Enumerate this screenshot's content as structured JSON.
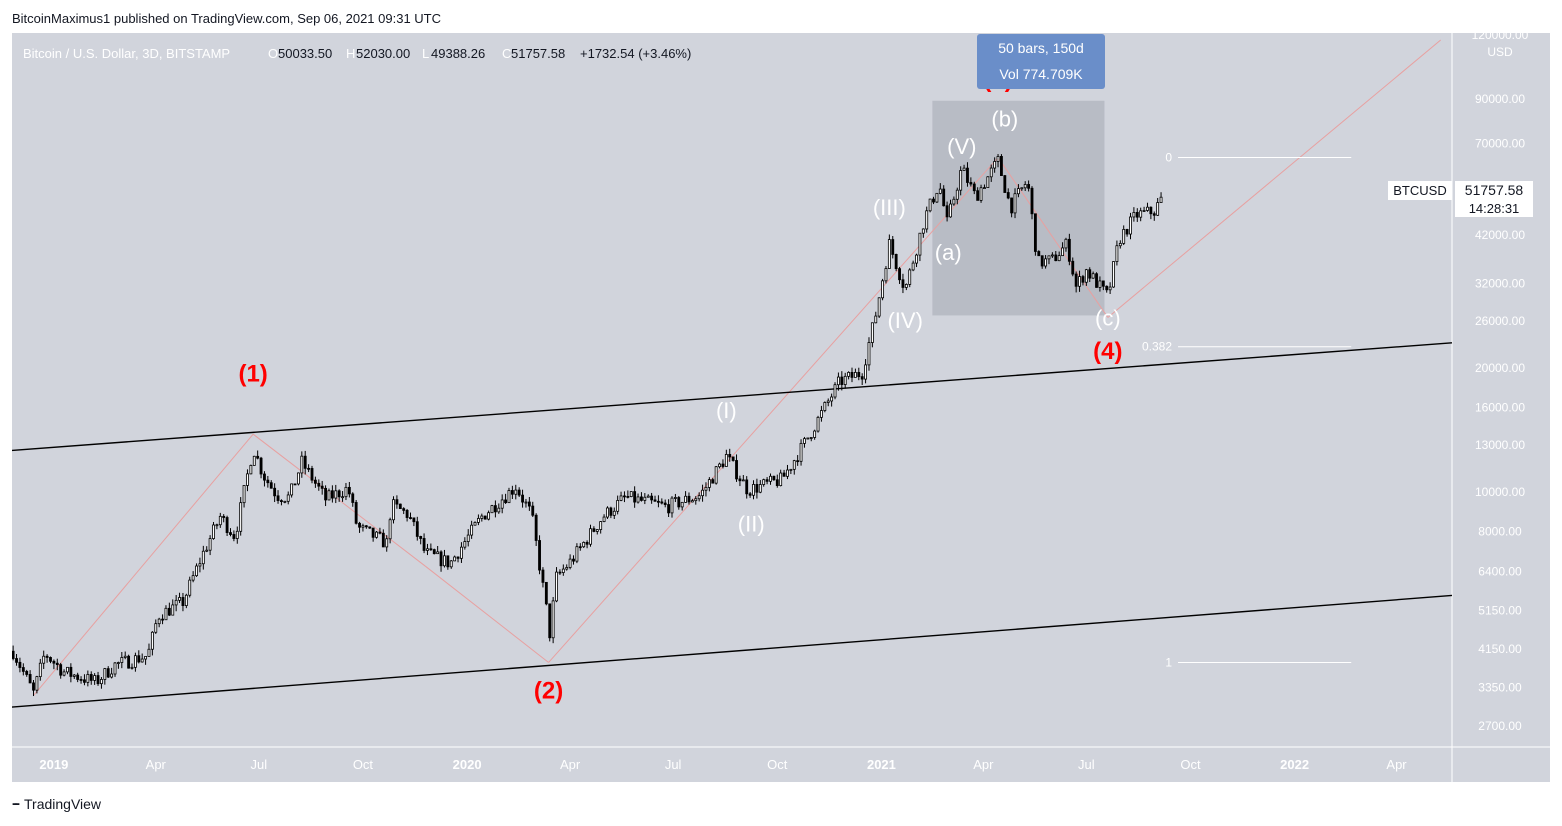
{
  "caption": "BitcoinMaximus1 published on TradingView.com, Sep 06, 2021 09:31 UTC",
  "footer": {
    "logo_text": "TradingView"
  },
  "legend": {
    "symbol": "Bitcoin / U.S. Dollar, 3D, BITSTAMP",
    "o_label": "O",
    "o_value": "50033.50",
    "h_label": "H",
    "h_value": "52030.00",
    "l_label": "L",
    "l_value": "49388.26",
    "c_label": "C",
    "c_value": "51757.58",
    "change": "+1732.54 (+3.46%)"
  },
  "measure": {
    "line1": "50 bars, 150d",
    "line2": "Vol 774.709K"
  },
  "price_tag": {
    "symbol": "BTCUSD",
    "price": "51757.58",
    "countdown": "14:28:31"
  },
  "fib_labels": {
    "zero": "0",
    "level_382": "0.382",
    "one": "1"
  },
  "colors": {
    "background": "#d1d4dc",
    "candle": "#000000",
    "wave_major": "#ff0000",
    "wave_minor": "#ffffff",
    "zigzag": "#e8a0a0",
    "measure_box": "#6a8ec9"
  },
  "chart_data": {
    "type": "candlestick",
    "title": "Bitcoin / U.S. Dollar, 3D, BITSTAMP",
    "currency": "USD",
    "y_scale": "log",
    "ylim": [
      2400,
      130000
    ],
    "xlim": [
      "2018-11-25",
      "2022-05-20"
    ],
    "y_ticks": [
      "120000.00",
      "90000.00",
      "70000.00",
      "54000.00",
      "42000.00",
      "32000.00",
      "26000.00",
      "20000.00",
      "16000.00",
      "13000.00",
      "10000.00",
      "8000.00",
      "6400.00",
      "5150.00",
      "4150.00",
      "3350.00",
      "2700.00"
    ],
    "x_ticks": [
      {
        "label": "2019",
        "date": "2019-01-01",
        "bold": true
      },
      {
        "label": "Apr",
        "date": "2019-04-01",
        "bold": false
      },
      {
        "label": "Jul",
        "date": "2019-07-01",
        "bold": false
      },
      {
        "label": "Oct",
        "date": "2019-10-01",
        "bold": false
      },
      {
        "label": "2020",
        "date": "2020-01-01",
        "bold": true
      },
      {
        "label": "Apr",
        "date": "2020-04-01",
        "bold": false
      },
      {
        "label": "Jul",
        "date": "2020-07-01",
        "bold": false
      },
      {
        "label": "Oct",
        "date": "2020-10-01",
        "bold": false
      },
      {
        "label": "2021",
        "date": "2021-01-01",
        "bold": true
      },
      {
        "label": "Apr",
        "date": "2021-04-01",
        "bold": false
      },
      {
        "label": "Jul",
        "date": "2021-07-01",
        "bold": false
      },
      {
        "label": "Oct",
        "date": "2021-10-01",
        "bold": false
      },
      {
        "label": "2022",
        "date": "2022-01-01",
        "bold": true
      },
      {
        "label": "Apr",
        "date": "2022-04-01",
        "bold": false
      }
    ],
    "price_path": [
      [
        "2018-11-26",
        4100
      ],
      [
        "2018-12-14",
        3250
      ],
      [
        "2018-12-24",
        4050
      ],
      [
        "2019-01-10",
        3650
      ],
      [
        "2019-02-07",
        3450
      ],
      [
        "2019-02-24",
        3800
      ],
      [
        "2019-03-25",
        4000
      ],
      [
        "2019-04-03",
        5000
      ],
      [
        "2019-04-25",
        5400
      ],
      [
        "2019-05-12",
        7000
      ],
      [
        "2019-05-28",
        8700
      ],
      [
        "2019-06-10",
        7800
      ],
      [
        "2019-06-26",
        12800
      ],
      [
        "2019-07-05",
        11000
      ],
      [
        "2019-07-17",
        9800
      ],
      [
        "2019-07-28",
        9700
      ],
      [
        "2019-08-08",
        11800
      ],
      [
        "2019-08-29",
        9600
      ],
      [
        "2019-09-18",
        10200
      ],
      [
        "2019-09-26",
        8200
      ],
      [
        "2019-10-22",
        7500
      ],
      [
        "2019-10-26",
        9300
      ],
      [
        "2019-11-10",
        8800
      ],
      [
        "2019-11-25",
        7100
      ],
      [
        "2019-12-17",
        6700
      ],
      [
        "2020-01-14",
        8700
      ],
      [
        "2020-02-13",
        10300
      ],
      [
        "2020-02-27",
        8800
      ],
      [
        "2020-03-12",
        5000
      ],
      [
        "2020-03-13",
        4300
      ],
      [
        "2020-03-20",
        6200
      ],
      [
        "2020-04-02",
        6800
      ],
      [
        "2020-04-30",
        8700
      ],
      [
        "2020-05-20",
        9700
      ],
      [
        "2020-06-25",
        9200
      ],
      [
        "2020-07-25",
        9800
      ],
      [
        "2020-08-17",
        12200
      ],
      [
        "2020-09-05",
        10100
      ],
      [
        "2020-10-05",
        10700
      ],
      [
        "2020-10-25",
        13100
      ],
      [
        "2020-11-25",
        18500
      ],
      [
        "2020-12-15",
        19500
      ],
      [
        "2020-12-27",
        27000
      ],
      [
        "2021-01-08",
        40000
      ],
      [
        "2021-01-22",
        31000
      ],
      [
        "2021-02-08",
        46000
      ],
      [
        "2021-02-21",
        56000
      ],
      [
        "2021-02-28",
        45000
      ],
      [
        "2021-03-13",
        61000
      ],
      [
        "2021-03-25",
        52000
      ],
      [
        "2021-04-14",
        63500
      ],
      [
        "2021-04-25",
        49000
      ],
      [
        "2021-05-10",
        57000
      ],
      [
        "2021-05-19",
        36000
      ],
      [
        "2021-06-01",
        36500
      ],
      [
        "2021-06-14",
        40000
      ],
      [
        "2021-06-22",
        31500
      ],
      [
        "2021-07-01",
        34500
      ],
      [
        "2021-07-20",
        29800
      ],
      [
        "2021-07-30",
        41000
      ],
      [
        "2021-08-14",
        47000
      ],
      [
        "2021-08-30",
        48000
      ],
      [
        "2021-09-06",
        51757
      ]
    ],
    "channel": [
      {
        "name": "upper",
        "points": [
          [
            "2018-11-25",
            12600
          ],
          [
            "2022-05-20",
            23000
          ]
        ]
      },
      {
        "name": "lower",
        "points": [
          [
            "2018-11-25",
            3000
          ],
          [
            "2022-05-20",
            5600
          ]
        ]
      }
    ],
    "zigzag": [
      [
        [
          "2018-12-14",
          3200
        ],
        [
          "2019-06-26",
          13800
        ]
      ],
      [
        [
          "2019-06-26",
          13800
        ],
        [
          "2019-11-25",
          6600
        ]
      ],
      [
        [
          "2019-11-25",
          6600
        ],
        [
          "2020-03-13",
          3850
        ]
      ],
      [
        [
          "2020-03-13",
          3850
        ],
        [
          "2021-04-14",
          64800
        ]
      ],
      [
        [
          "2021-04-14",
          64800
        ],
        [
          "2021-07-20",
          26500
        ]
      ],
      [
        [
          "2021-07-20",
          26500
        ],
        [
          "2022-05-10",
          125000
        ]
      ]
    ],
    "measure_box": {
      "x0": "2021-02-15",
      "x1": "2021-07-17",
      "y_top": 89000,
      "y_bottom": 26800
    },
    "fib_levels": [
      {
        "label": "0",
        "price": 64800,
        "x0": "2021-09-20",
        "x1": "2022-02-20"
      },
      {
        "label": "0.382",
        "price": 22500,
        "x0": "2021-09-20",
        "x1": "2022-02-20"
      },
      {
        "label": "1",
        "price": 3850,
        "x0": "2021-09-20",
        "x1": "2022-02-20"
      }
    ],
    "wave_labels": [
      {
        "text": "(1)",
        "date": "2019-06-26",
        "price": 18500,
        "tier": "major"
      },
      {
        "text": "(2)",
        "date": "2020-03-13",
        "price": 3150,
        "tier": "major"
      },
      {
        "text": "(3)",
        "date": "2021-04-14",
        "price": 96000,
        "tier": "major"
      },
      {
        "text": "(4)",
        "date": "2021-07-20",
        "price": 21000,
        "tier": "major"
      },
      {
        "text": "(I)",
        "date": "2020-08-17",
        "price": 15100,
        "tier": "minor"
      },
      {
        "text": "(II)",
        "date": "2020-09-08",
        "price": 8000,
        "tier": "minor"
      },
      {
        "text": "(III)",
        "date": "2021-01-08",
        "price": 47000,
        "tier": "minor"
      },
      {
        "text": "(IV)",
        "date": "2021-01-22",
        "price": 25000,
        "tier": "minor"
      },
      {
        "text": "(V)",
        "date": "2021-03-13",
        "price": 66000,
        "tier": "minor"
      },
      {
        "text": "(a)",
        "date": "2021-03-01",
        "price": 36500,
        "tier": "minor"
      },
      {
        "text": "(b)",
        "date": "2021-04-20",
        "price": 77000,
        "tier": "minor"
      },
      {
        "text": "(c)",
        "date": "2021-07-20",
        "price": 25300,
        "tier": "minor"
      }
    ]
  }
}
